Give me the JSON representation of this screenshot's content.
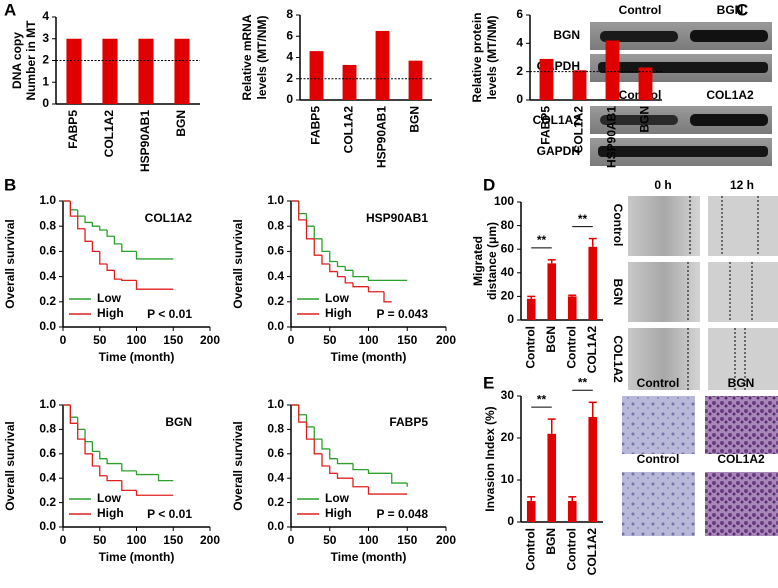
{
  "panels": [
    "A",
    "B",
    "C",
    "D",
    "E"
  ],
  "blots": {
    "lanes_1": [
      "Control",
      "BGN"
    ],
    "rows_1": [
      "BGN",
      "GAPDH"
    ],
    "lanes_2": [
      "Control",
      "COL1A2"
    ],
    "rows_2": [
      "COL1A2",
      "GAPDH"
    ]
  },
  "wound": {
    "columns": [
      "0 h",
      "12 h"
    ],
    "rows": [
      "Control",
      "BGN",
      "COL1A2"
    ]
  },
  "invasion": {
    "labels": [
      "Control",
      "BGN",
      "Control",
      "COL1A2"
    ]
  },
  "chart_data": [
    {
      "type": "bar",
      "ylabel": [
        "DNA copy",
        "Number in MT"
      ],
      "categories": [
        "FABP5",
        "COL1A2",
        "HSP90AB1",
        "BGN"
      ],
      "values": [
        3,
        3,
        3,
        3
      ],
      "color": "#e00000",
      "ylim": [
        0,
        4
      ],
      "yticks": [
        0,
        1,
        2,
        3,
        4
      ],
      "refline": 2
    },
    {
      "type": "bar",
      "ylabel": [
        "Relative mRNA",
        "levels (MT/NM)"
      ],
      "categories": [
        "FABP5",
        "COL1A2",
        "HSP90AB1",
        "BGN"
      ],
      "values": [
        4.6,
        3.3,
        6.5,
        3.7
      ],
      "color": "#e00000",
      "ylim": [
        0,
        8
      ],
      "yticks": [
        0,
        2,
        4,
        6,
        8
      ],
      "refline": 2
    },
    {
      "type": "bar",
      "ylabel": [
        "Relative protein",
        "levels (MT/NM)"
      ],
      "categories": [
        "FABP5",
        "COL1A2",
        "HSP90AB1",
        "BGN"
      ],
      "values": [
        2.9,
        2.1,
        4.2,
        2.3
      ],
      "color": "#e00000",
      "ylim": [
        0,
        6
      ],
      "yticks": [
        0,
        2,
        4,
        6
      ],
      "refline": 2
    },
    {
      "type": "km",
      "title": "COL1A2",
      "annotation": "P < 0.01",
      "xlabel": "Time (month)",
      "ylabel": "Overall survival",
      "xlim": [
        0,
        200
      ],
      "xticks": [
        0,
        50,
        100,
        150,
        200
      ],
      "ylim": [
        0,
        1
      ],
      "yticks": [
        {
          "value": 0,
          "label": "0.0"
        },
        0.2,
        0.4,
        0.6,
        0.8,
        {
          "value": 1,
          "label": "1.0"
        }
      ],
      "series": [
        {
          "name": "Low",
          "color": "#2ca02c",
          "x": [
            0,
            10,
            20,
            30,
            40,
            50,
            60,
            70,
            80,
            100,
            150
          ],
          "values": [
            1,
            0.93,
            0.88,
            0.83,
            0.8,
            0.77,
            0.72,
            0.66,
            0.6,
            0.54,
            0.54
          ]
        },
        {
          "name": "High",
          "color": "#e02020",
          "x": [
            0,
            10,
            20,
            30,
            40,
            50,
            60,
            70,
            80,
            100,
            150
          ],
          "values": [
            1,
            0.88,
            0.78,
            0.68,
            0.6,
            0.5,
            0.45,
            0.38,
            0.37,
            0.3,
            0.3
          ]
        }
      ]
    },
    {
      "type": "km",
      "title": "HSP90AB1",
      "annotation": "P = 0.043",
      "xlabel": "Time (month)",
      "ylabel": "Overall survival",
      "xlim": [
        0,
        200
      ],
      "xticks": [
        0,
        50,
        100,
        150,
        200
      ],
      "ylim": [
        0,
        1
      ],
      "yticks": [
        {
          "value": 0,
          "label": "0.0"
        },
        0.2,
        0.4,
        0.6,
        0.8,
        {
          "value": 1,
          "label": "1.0"
        }
      ],
      "series": [
        {
          "name": "Low",
          "color": "#2ca02c",
          "x": [
            0,
            10,
            20,
            30,
            40,
            50,
            60,
            70,
            80,
            100,
            150
          ],
          "values": [
            1,
            0.9,
            0.8,
            0.7,
            0.6,
            0.52,
            0.48,
            0.45,
            0.4,
            0.37,
            0.37
          ]
        },
        {
          "name": "High",
          "color": "#e02020",
          "x": [
            0,
            10,
            20,
            30,
            40,
            50,
            60,
            70,
            80,
            100,
            120,
            130
          ],
          "values": [
            1,
            0.85,
            0.7,
            0.57,
            0.5,
            0.44,
            0.4,
            0.35,
            0.32,
            0.28,
            0.2,
            0.2
          ]
        }
      ]
    },
    {
      "type": "km",
      "title": "BGN",
      "annotation": "P < 0.01",
      "xlabel": "Time (month)",
      "ylabel": "Overall survival",
      "xlim": [
        0,
        200
      ],
      "xticks": [
        0,
        50,
        100,
        150,
        200
      ],
      "ylim": [
        0,
        1
      ],
      "yticks": [
        {
          "value": 0,
          "label": "0.0"
        },
        0.2,
        0.4,
        0.6,
        0.8,
        {
          "value": 1,
          "label": "1.0"
        }
      ],
      "series": [
        {
          "name": "Low",
          "color": "#2ca02c",
          "x": [
            0,
            10,
            20,
            30,
            40,
            50,
            60,
            80,
            100,
            130,
            150
          ],
          "values": [
            1,
            0.9,
            0.8,
            0.7,
            0.62,
            0.56,
            0.52,
            0.46,
            0.43,
            0.38,
            0.38
          ]
        },
        {
          "name": "High",
          "color": "#e02020",
          "x": [
            0,
            10,
            20,
            30,
            40,
            50,
            60,
            80,
            100,
            150
          ],
          "values": [
            1,
            0.85,
            0.72,
            0.6,
            0.5,
            0.42,
            0.38,
            0.3,
            0.26,
            0.26
          ]
        }
      ]
    },
    {
      "type": "km",
      "title": "FABP5",
      "annotation": "P = 0.048",
      "xlabel": "Time (month)",
      "ylabel": "Overall survival",
      "xlim": [
        0,
        200
      ],
      "xticks": [
        0,
        50,
        100,
        150,
        200
      ],
      "ylim": [
        0,
        1
      ],
      "yticks": [
        {
          "value": 0,
          "label": "0.0"
        },
        0.2,
        0.4,
        0.6,
        0.8,
        {
          "value": 1,
          "label": "1.0"
        }
      ],
      "series": [
        {
          "name": "Low",
          "color": "#2ca02c",
          "x": [
            0,
            10,
            20,
            30,
            40,
            50,
            60,
            80,
            100,
            130,
            150
          ],
          "values": [
            1,
            0.92,
            0.82,
            0.72,
            0.64,
            0.56,
            0.52,
            0.47,
            0.44,
            0.36,
            0.33
          ]
        },
        {
          "name": "High",
          "color": "#e02020",
          "x": [
            0,
            10,
            20,
            30,
            40,
            50,
            60,
            80,
            100,
            150
          ],
          "values": [
            1,
            0.86,
            0.72,
            0.6,
            0.5,
            0.44,
            0.4,
            0.33,
            0.27,
            0.27
          ]
        }
      ]
    },
    {
      "type": "bar",
      "ylabel": [
        "Migrated",
        "distance (μm)"
      ],
      "categories": [
        "Control",
        "BGN",
        "Control",
        "COL1A2"
      ],
      "values": [
        18,
        48,
        20,
        62
      ],
      "errors": [
        2,
        3,
        1,
        7
      ],
      "color": "#e00000",
      "ylim": [
        0,
        100
      ],
      "yticks": [
        0,
        20,
        40,
        60,
        80,
        100
      ],
      "annotations": [
        "**",
        "**"
      ]
    },
    {
      "type": "bar",
      "ylabel": [
        "Invasion Index (%)"
      ],
      "categories": [
        "Control",
        "BGN",
        "Control",
        "COL1A2"
      ],
      "values": [
        5,
        21,
        5,
        25
      ],
      "errors": [
        1,
        3.5,
        1,
        3.5
      ],
      "color": "#e00000",
      "ylim": [
        0,
        30
      ],
      "yticks": [
        0,
        10,
        20,
        30
      ],
      "annotations": [
        "**",
        "**"
      ]
    }
  ]
}
